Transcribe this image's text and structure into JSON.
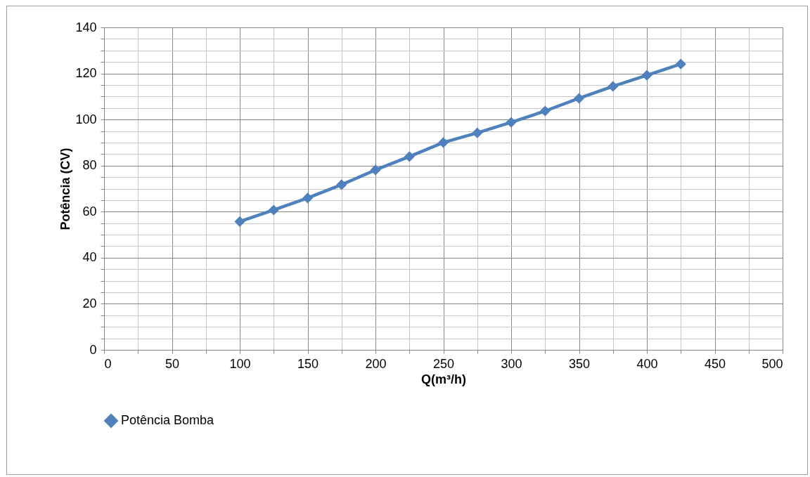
{
  "chart_data": {
    "type": "line",
    "xlabel": "Q(m³/h)",
    "ylabel": "Potência (CV)",
    "x": [
      100,
      125,
      150,
      175,
      200,
      225,
      250,
      275,
      300,
      325,
      350,
      375,
      400,
      425
    ],
    "series": [
      {
        "name": "Potência Bomba",
        "color": "#4f81bd",
        "values": [
          55.7,
          60.7,
          65.9,
          71.7,
          78.1,
          83.9,
          90,
          94.2,
          98.8,
          103.7,
          109.2,
          114.4,
          119.2,
          124.1
        ]
      }
    ],
    "xlim": [
      0,
      500
    ],
    "ylim": [
      0,
      140
    ],
    "xticks": [
      0,
      {
        "value": 25,
        "label": null
      },
      50,
      {
        "value": 75,
        "label": null
      },
      100,
      {
        "value": 125,
        "label": null
      },
      150,
      {
        "value": 175,
        "label": null
      },
      200,
      {
        "value": 225,
        "label": null
      },
      250,
      {
        "value": 275,
        "label": null
      },
      300,
      {
        "value": 325,
        "label": null
      },
      350,
      {
        "value": 375,
        "label": null
      },
      400,
      {
        "value": 425,
        "label": null
      },
      450,
      {
        "value": 475,
        "label": null
      },
      500
    ],
    "yticks": [
      0,
      {
        "value": 5,
        "label": null
      },
      {
        "value": 10,
        "label": null
      },
      {
        "value": 15,
        "label": null
      },
      20,
      {
        "value": 25,
        "label": null
      },
      {
        "value": 30,
        "label": null
      },
      {
        "value": 35,
        "label": null
      },
      40,
      {
        "value": 45,
        "label": null
      },
      {
        "value": 50,
        "label": null
      },
      {
        "value": 55,
        "label": null
      },
      60,
      {
        "value": 65,
        "label": null
      },
      {
        "value": 70,
        "label": null
      },
      {
        "value": 75,
        "label": null
      },
      80,
      {
        "value": 85,
        "label": null
      },
      {
        "value": 90,
        "label": null
      },
      {
        "value": 95,
        "label": null
      },
      100,
      {
        "value": 105,
        "label": null
      },
      {
        "value": 110,
        "label": null
      },
      {
        "value": 115,
        "label": null
      },
      120,
      {
        "value": 125,
        "label": null
      },
      {
        "value": 130,
        "label": null
      },
      {
        "value": 135,
        "label": null
      },
      140
    ],
    "grid": true,
    "legend": "bottom",
    "marker": "diamond",
    "line_style": "solid"
  }
}
